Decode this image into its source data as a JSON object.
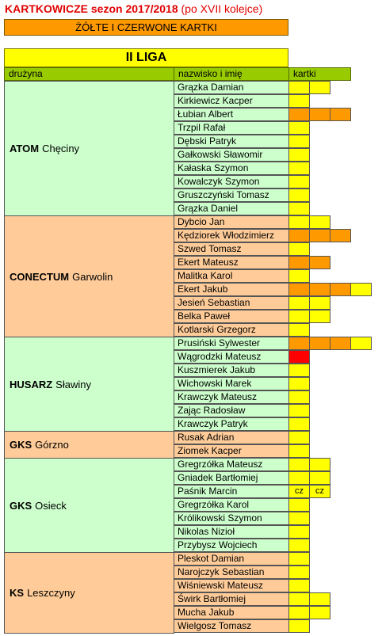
{
  "header": {
    "title_bold": "KARTKOWICZE sezon 2017/2018",
    "title_normal": "(po XVII kolejce)",
    "subtitle": "ŻÓŁTE I CZERWONE KARTKI",
    "league": "II LIGA"
  },
  "columns": {
    "team": "drużyna",
    "player": "nazwisko i imię",
    "cards": "kartki"
  },
  "colors": {
    "yellow": "#ffff00",
    "orange": "#ff9900",
    "red": "#ff0000",
    "green_bg": "#ccffcc",
    "peach_bg": "#ffcc99",
    "header_bg": "#99cc00"
  },
  "teams": [
    {
      "bold": "ATOM",
      "city": "Chęciny",
      "bg": "green",
      "players": [
        {
          "name": "Grązka Damian",
          "cards": [
            "y",
            "y"
          ]
        },
        {
          "name": "Kirkiewicz Kacper",
          "cards": [
            "y"
          ]
        },
        {
          "name": "Łubian Albert",
          "cards": [
            "o",
            "o",
            "o"
          ]
        },
        {
          "name": "Trzpil Rafał",
          "cards": [
            "y"
          ]
        },
        {
          "name": "Dębski Patryk",
          "cards": [
            "y"
          ]
        },
        {
          "name": "Gałkowski Sławomir",
          "cards": [
            "y"
          ]
        },
        {
          "name": "Kałaska Szymon",
          "cards": [
            "y"
          ]
        },
        {
          "name": "Kowalczyk Szymon",
          "cards": [
            "y"
          ]
        },
        {
          "name": "Gruszczyński Tomasz",
          "cards": [
            "y"
          ]
        },
        {
          "name": "Grązka Daniel",
          "cards": [
            "y"
          ]
        }
      ]
    },
    {
      "bold": "CONECTUM",
      "city": "Garwolin",
      "bg": "peach",
      "players": [
        {
          "name": "Dybcio Jan",
          "cards": [
            "y",
            "y"
          ]
        },
        {
          "name": "Kędziorek Włodzimierz",
          "cards": [
            "o",
            "o",
            "o"
          ]
        },
        {
          "name": "Szwed Tomasz",
          "cards": [
            "y"
          ]
        },
        {
          "name": "Ekert Mateusz",
          "cards": [
            "o",
            "o"
          ]
        },
        {
          "name": "Malitka Karol",
          "cards": [
            "y"
          ]
        },
        {
          "name": "Ekert Jakub",
          "cards": [
            "o",
            "o",
            "o",
            "y"
          ]
        },
        {
          "name": "Jesień Sebastian",
          "cards": [
            "y",
            "y"
          ]
        },
        {
          "name": "Belka Paweł",
          "cards": [
            "y",
            "y"
          ]
        },
        {
          "name": "Kotlarski Grzegorz",
          "cards": [
            "y"
          ]
        }
      ]
    },
    {
      "bold": "HUSARZ",
      "city": "Sławiny",
      "bg": "green",
      "players": [
        {
          "name": "Prusiński Sylwester",
          "cards": [
            "o",
            "o",
            "o",
            "y"
          ]
        },
        {
          "name": "Wągrodzki Mateusz",
          "cards": [
            "r"
          ]
        },
        {
          "name": "Kuszmierek Jakub",
          "cards": [
            "y"
          ]
        },
        {
          "name": "Wichowski Marek",
          "cards": [
            "y"
          ]
        },
        {
          "name": "Krawczyk Mateusz",
          "cards": [
            "y"
          ]
        },
        {
          "name": "Zając Radosław",
          "cards": [
            "y"
          ]
        },
        {
          "name": "Krawczyk Patryk",
          "cards": [
            "y"
          ]
        }
      ]
    },
    {
      "bold": "GKS",
      "city": "Górzno",
      "bg": "peach",
      "players": [
        {
          "name": "Rusak Adrian",
          "cards": [
            "y"
          ]
        },
        {
          "name": "Ziomek Kacper",
          "cards": [
            "y"
          ]
        }
      ]
    },
    {
      "bold": "GKS",
      "city": "Osieck",
      "bg": "green",
      "players": [
        {
          "name": "Gregrzółka Mateusz",
          "cards": [
            "y",
            "y"
          ]
        },
        {
          "name": "Gniadek Bartłomiej",
          "cards": [
            "y",
            "y"
          ]
        },
        {
          "name": "Paśnik Marcin",
          "cards": [
            "cz",
            "cz"
          ]
        },
        {
          "name": "Gregrzółka Karol",
          "cards": [
            "y"
          ]
        },
        {
          "name": "Królikowski Szymon",
          "cards": [
            "y"
          ]
        },
        {
          "name": "Nikolas Nizioł",
          "cards": [
            "y"
          ]
        },
        {
          "name": "Przybysz Wojciech",
          "cards": [
            "y"
          ]
        }
      ]
    },
    {
      "bold": "KS",
      "city": "Leszczyny",
      "bg": "peach",
      "players": [
        {
          "name": "Pleskot Damian",
          "cards": [
            "y"
          ]
        },
        {
          "name": "Narojczyk Sebastian",
          "cards": [
            "y"
          ]
        },
        {
          "name": "Wiśniewski Mateusz",
          "cards": [
            "y"
          ]
        },
        {
          "name": "Świrk Bartłomiej",
          "cards": [
            "y",
            "y"
          ]
        },
        {
          "name": "Mucha Jakub",
          "cards": [
            "y",
            "y"
          ]
        },
        {
          "name": "Wielgosz Tomasz",
          "cards": [
            "y"
          ]
        }
      ]
    }
  ]
}
